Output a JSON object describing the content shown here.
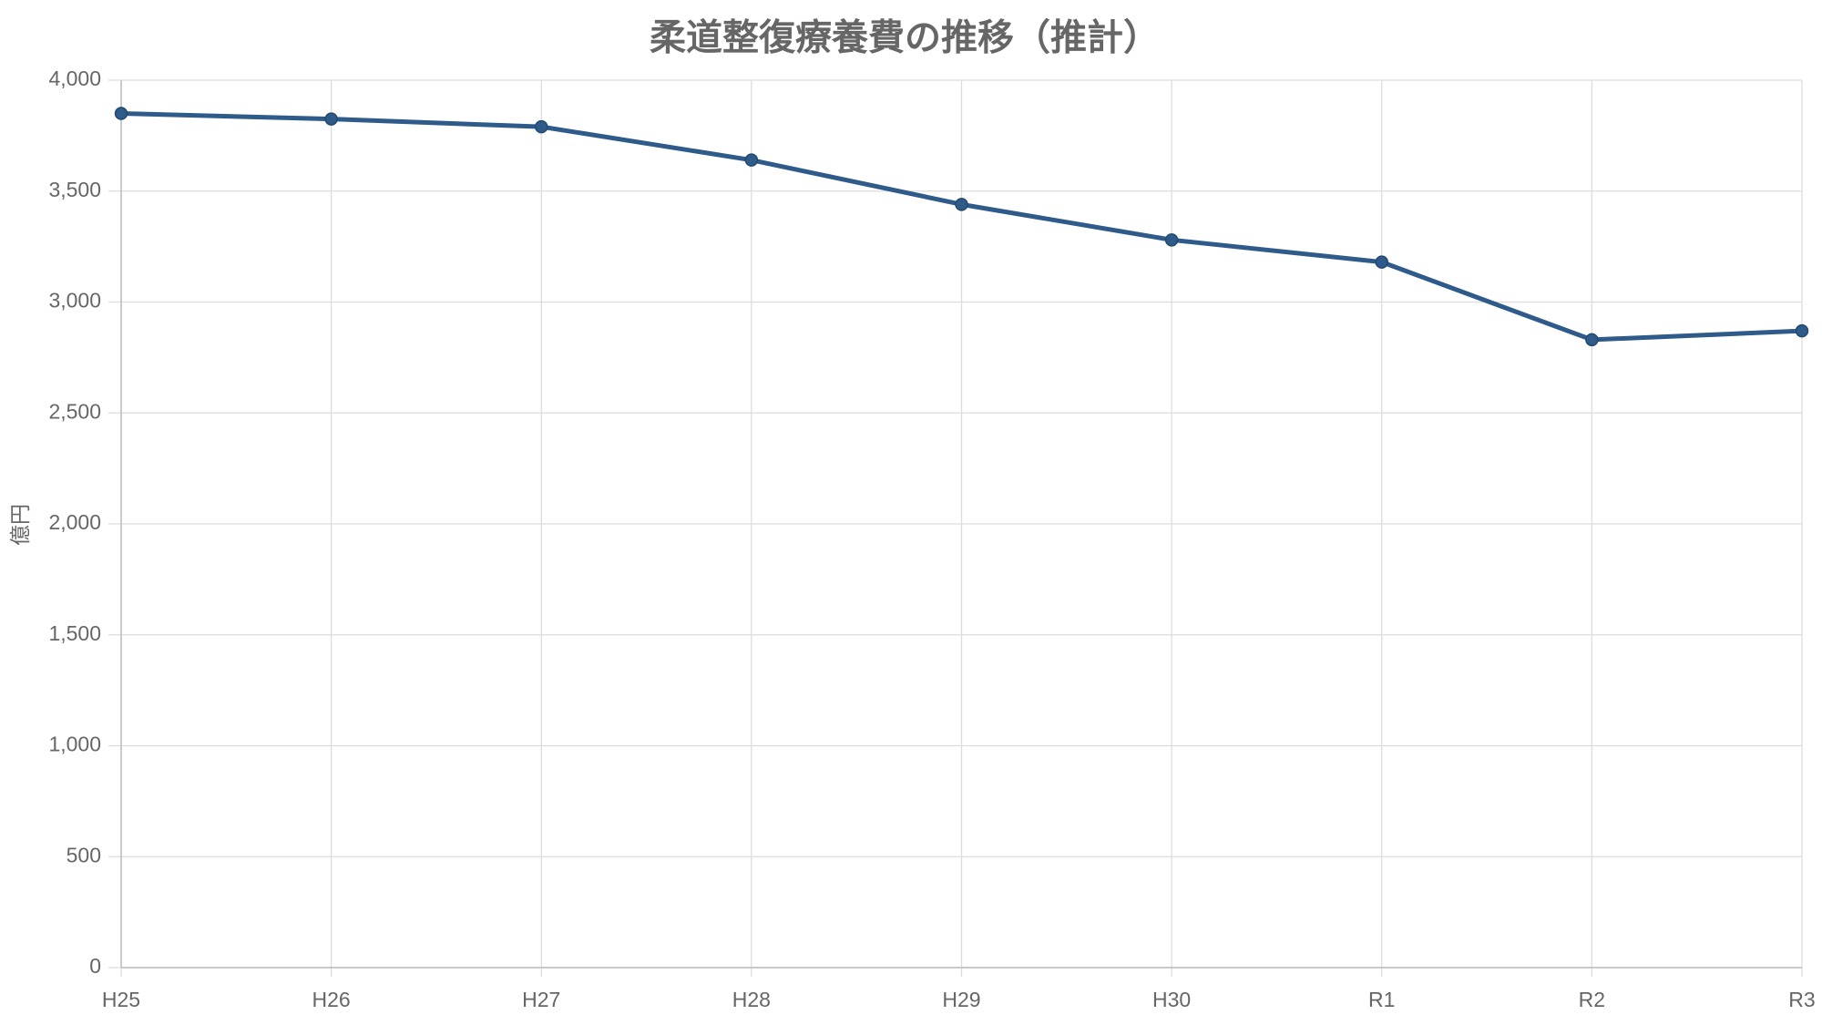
{
  "chart_data": {
    "type": "line",
    "title": "柔道整復療養費の推移（推計）",
    "y_label": "億円",
    "categories": [
      "H25",
      "H26",
      "H27",
      "H28",
      "H29",
      "H30",
      "R1",
      "R2",
      "R3"
    ],
    "series": [
      {
        "name": "柔道整復療養費",
        "color": "#2e5b8a",
        "values": [
          3850,
          3825,
          3790,
          3640,
          3440,
          3280,
          3180,
          2830,
          2870
        ]
      }
    ],
    "ylim": [
      0,
      4000
    ],
    "yticks": [
      0,
      500,
      {
        "value": 1000,
        "label": "1,000"
      },
      {
        "value": 1500,
        "label": "1,500"
      },
      {
        "value": 2000,
        "label": "2,000"
      },
      {
        "value": 2500,
        "label": "2,500"
      },
      {
        "value": 3000,
        "label": "3,000"
      },
      {
        "value": 3500,
        "label": "3,500"
      },
      {
        "value": 4000,
        "label": "4,000"
      }
    ],
    "grid": true
  }
}
